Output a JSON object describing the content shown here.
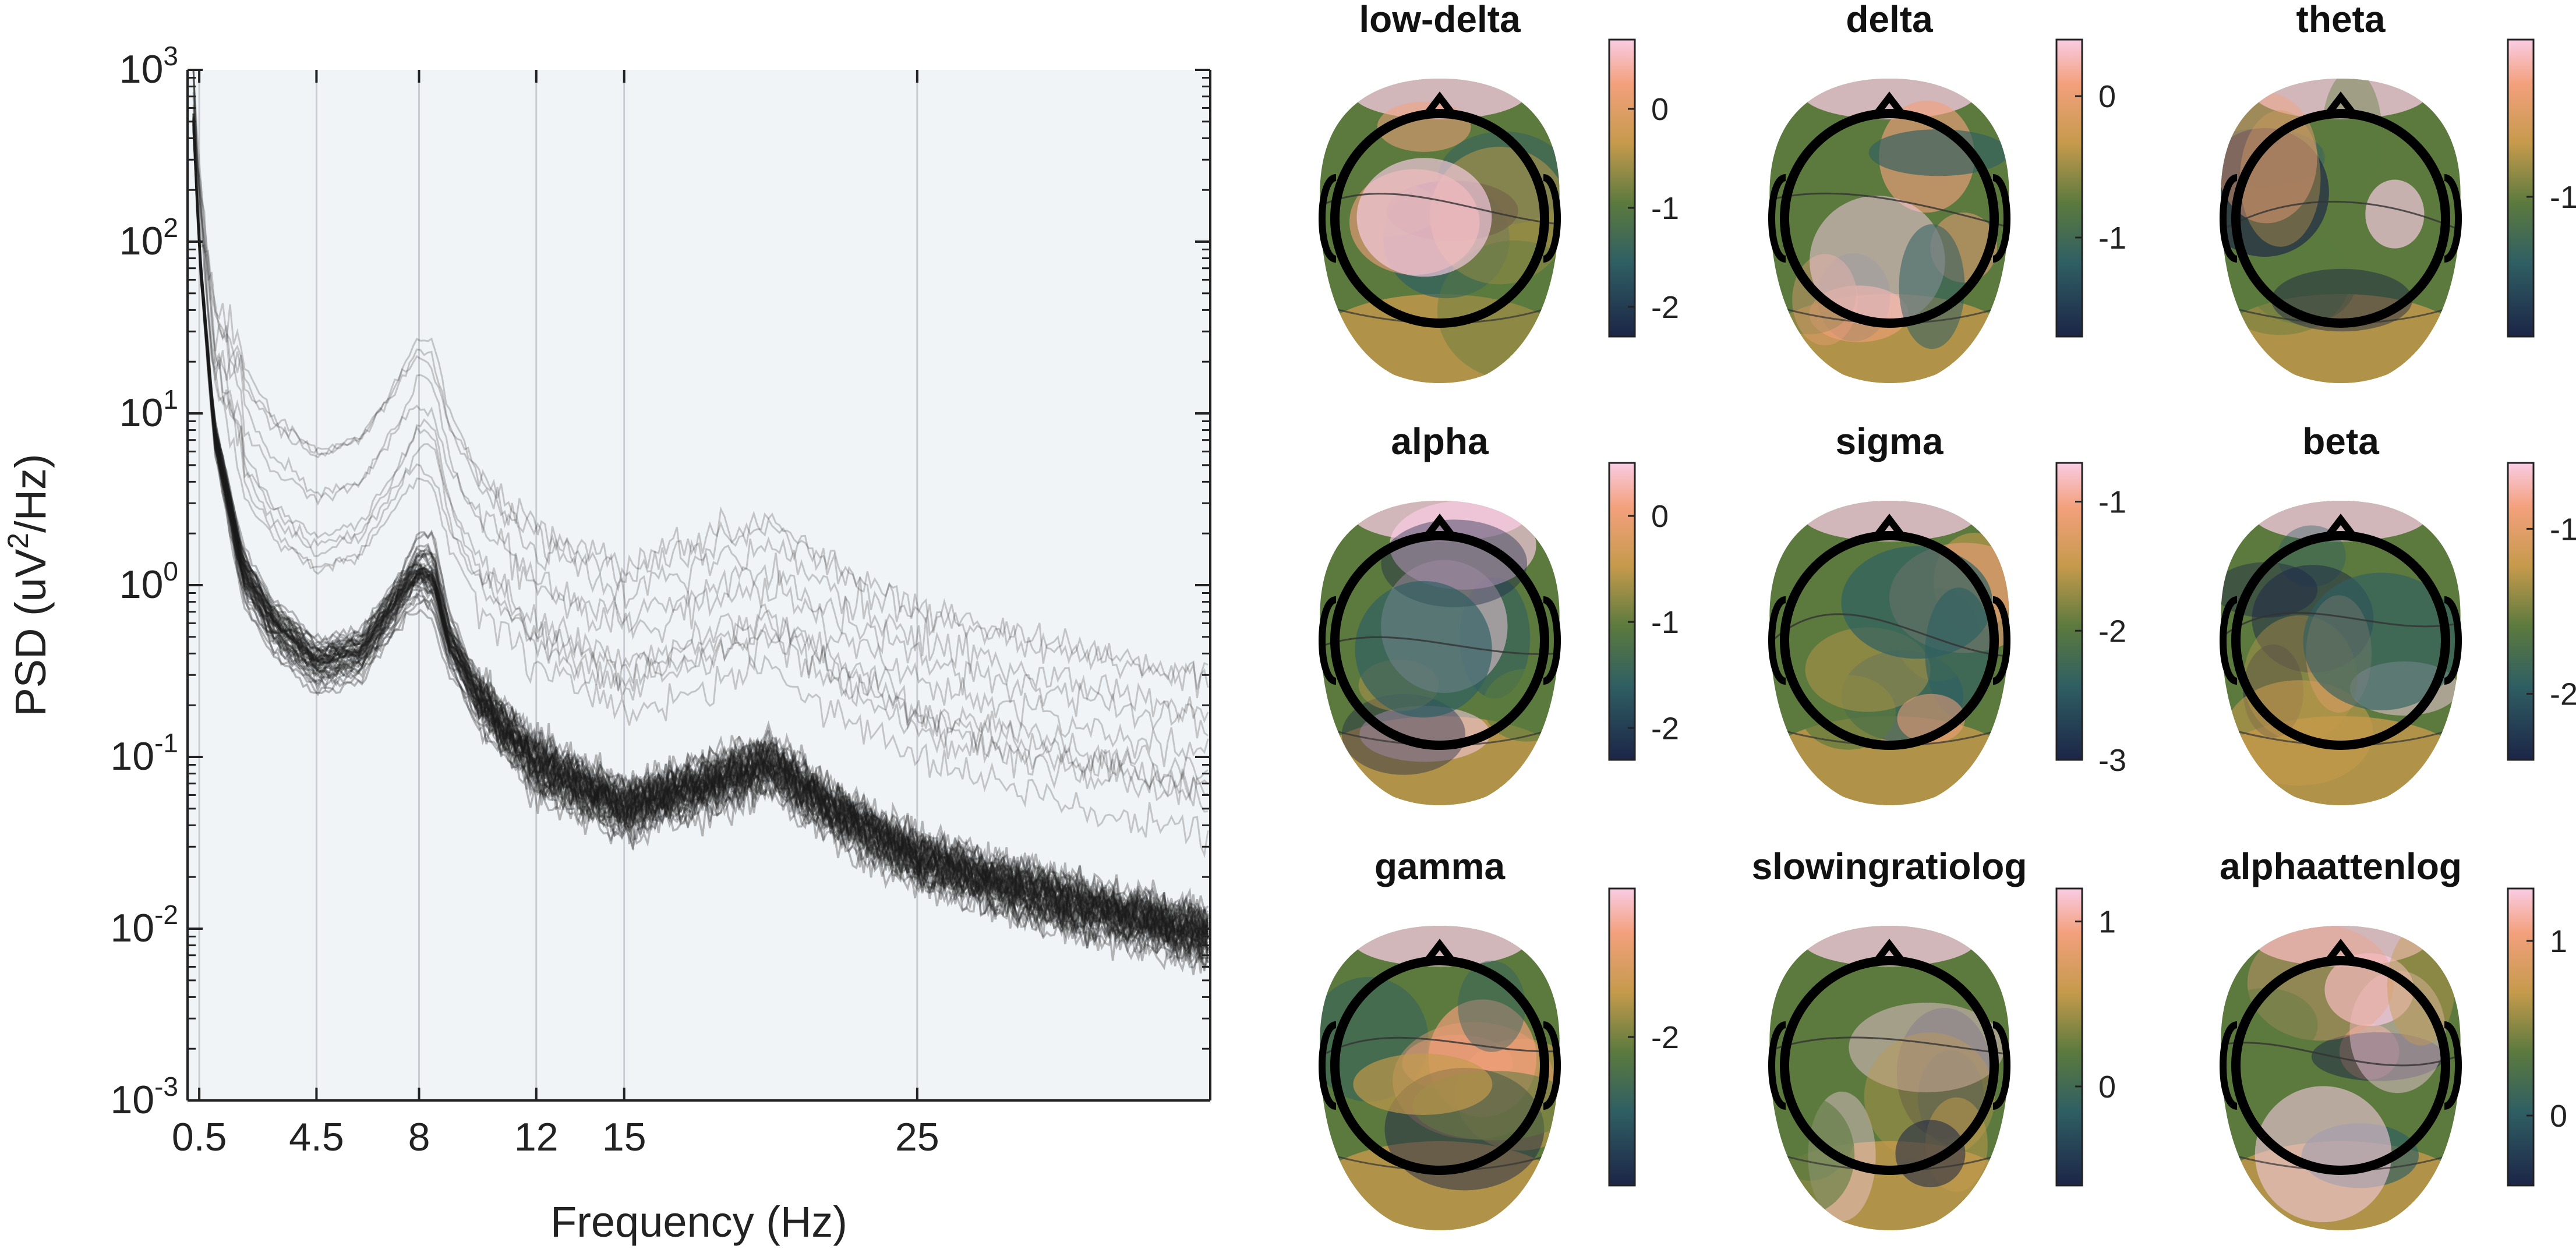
{
  "psd_chart": {
    "xlabel": "Frequency (Hz)",
    "ylabel_prefix": "PSD (uV",
    "ylabel_sup": "2",
    "ylabel_suffix": "/Hz)",
    "x_ticks": [
      {
        "value": 0.5,
        "label": "0.5"
      },
      {
        "value": 4.5,
        "label": "4.5"
      },
      {
        "value": 8,
        "label": "8"
      },
      {
        "value": 12,
        "label": "12"
      },
      {
        "value": 15,
        "label": "15"
      },
      {
        "value": 25,
        "label": "25"
      }
    ],
    "y_ticks": [
      {
        "value": 1000,
        "base": "10",
        "exp": "3"
      },
      {
        "value": 100,
        "base": "10",
        "exp": "2"
      },
      {
        "value": 10,
        "base": "10",
        "exp": "1"
      },
      {
        "value": 1,
        "base": "10",
        "exp": "0"
      },
      {
        "value": 0.1,
        "base": "10",
        "exp": "-1"
      },
      {
        "value": 0.01,
        "base": "10",
        "exp": "-2"
      },
      {
        "value": 0.001,
        "base": "10",
        "exp": "-3"
      }
    ],
    "colors": {
      "background": "#f1f4f7",
      "grid": "#c9ccd0",
      "line": "#1a1a1a",
      "axis": "#222222"
    }
  },
  "chart_data": {
    "type": "line",
    "scale": {
      "x": "linear",
      "y": "log"
    },
    "xlim": [
      0.1,
      35
    ],
    "ylim": [
      0.001,
      1000
    ],
    "x_gridlines": [
      0.5,
      4.5,
      8,
      12,
      15,
      25
    ],
    "grid": "vertical-only",
    "series_description_count": 60,
    "representative_series": [
      {
        "x": [
          0.3,
          0.5,
          1,
          2,
          3,
          4.5,
          6,
          7,
          8,
          8.5,
          9,
          10,
          12,
          15,
          18,
          20,
          22,
          25,
          30,
          35
        ],
        "values": [
          500,
          90,
          8,
          1.2,
          0.6,
          0.35,
          0.4,
          0.7,
          1.3,
          1.2,
          0.5,
          0.22,
          0.09,
          0.05,
          0.07,
          0.09,
          0.05,
          0.025,
          0.014,
          0.009
        ]
      },
      {
        "x": [
          0.3,
          0.5,
          1,
          2,
          3,
          4.5,
          6,
          7,
          8,
          8.5,
          9,
          10,
          12,
          15,
          18,
          20,
          22,
          25,
          30,
          35
        ],
        "values": [
          900,
          180,
          20,
          4,
          2,
          1.2,
          1.3,
          2,
          4,
          5,
          3,
          1.8,
          1.1,
          0.8,
          0.6,
          0.55,
          0.45,
          0.35,
          0.28,
          0.25
        ]
      },
      {
        "x": [
          0.3,
          0.5,
          1,
          2,
          3,
          4.5,
          6,
          7,
          8,
          8.5,
          9,
          10,
          12,
          15,
          18,
          20,
          22,
          25,
          30,
          35
        ],
        "values": [
          700,
          140,
          12,
          2,
          1,
          0.6,
          0.7,
          1,
          1.8,
          1.8,
          1,
          0.6,
          0.4,
          0.3,
          0.25,
          0.22,
          0.18,
          0.13,
          0.09,
          0.07
        ]
      }
    ]
  },
  "topomaps": {
    "colors": {
      "low": "#1c2547",
      "mid_low": "#2f5f63",
      "mid": "#5c7a3e",
      "mid_high": "#c59a4c",
      "high": "#f3a07c",
      "top": "#f9cce4",
      "contour": "#333333",
      "outline": "#000000"
    },
    "panels": [
      {
        "title": "low-delta",
        "cb_ticks": [
          {
            "v": 0,
            "label": "0"
          },
          {
            "v": -1,
            "label": "-1"
          },
          {
            "v": -2,
            "label": "-2"
          }
        ],
        "cb_range": [
          -2.3,
          0.7
        ]
      },
      {
        "title": "delta",
        "cb_ticks": [
          {
            "v": 0,
            "label": "0"
          },
          {
            "v": -1,
            "label": "-1"
          }
        ],
        "cb_range": [
          -1.7,
          0.4
        ]
      },
      {
        "title": "theta",
        "cb_ticks": [
          {
            "v": -1,
            "label": "-1"
          }
        ],
        "cb_range": [
          -1.8,
          -0.1
        ]
      },
      {
        "title": "alpha",
        "cb_ticks": [
          {
            "v": 0,
            "label": "0"
          },
          {
            "v": -1,
            "label": "-1"
          },
          {
            "v": -2,
            "label": "-2"
          }
        ],
        "cb_range": [
          -2.3,
          0.5
        ]
      },
      {
        "title": "sigma",
        "cb_ticks": [
          {
            "v": -1,
            "label": "-1"
          },
          {
            "v": -2,
            "label": "-2"
          },
          {
            "v": -3,
            "label": "-3"
          }
        ],
        "cb_range": [
          -3,
          -0.7
        ]
      },
      {
        "title": "beta",
        "cb_ticks": [
          {
            "v": -1,
            "label": "-1"
          },
          {
            "v": -2,
            "label": "-2"
          }
        ],
        "cb_range": [
          -2.4,
          -0.6
        ]
      },
      {
        "title": "gamma",
        "cb_ticks": [
          {
            "v": -2,
            "label": "-2"
          }
        ],
        "cb_range": [
          -3.1,
          -0.9
        ]
      },
      {
        "title": "slowingratiolog",
        "cb_ticks": [
          {
            "v": 1,
            "label": "1"
          },
          {
            "v": 0,
            "label": "0"
          }
        ],
        "cb_range": [
          -0.6,
          1.2
        ]
      },
      {
        "title": "alphaattenlog",
        "cb_ticks": [
          {
            "v": 1,
            "label": "1"
          },
          {
            "v": 0,
            "label": "0"
          }
        ],
        "cb_range": [
          -0.4,
          1.3
        ]
      }
    ]
  }
}
